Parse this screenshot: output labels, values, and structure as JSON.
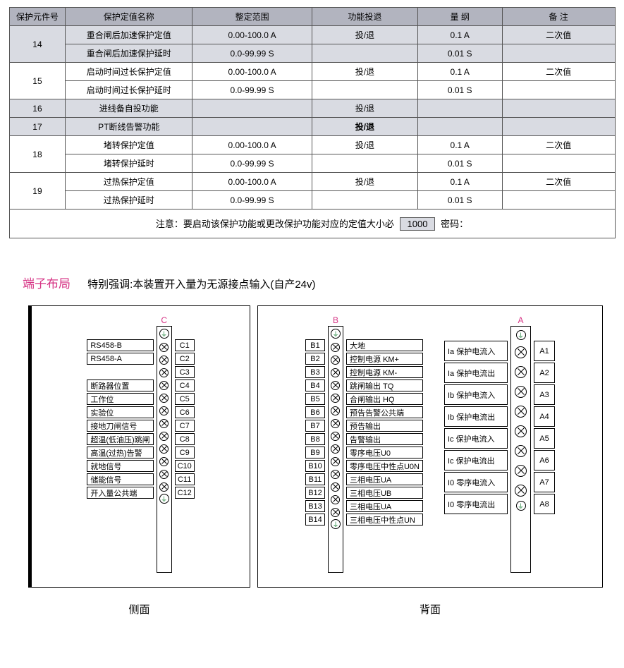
{
  "table": {
    "headers": [
      "保护元件号",
      "保护定值名称",
      "整定范围",
      "功能投退",
      "量 纲",
      "备 注"
    ],
    "groups": [
      {
        "id": "14",
        "shade": true,
        "rows": [
          {
            "name": "重合闸后加速保护定值",
            "range": "0.00-100.0 A",
            "func": "投/退",
            "unit": "0.1 A",
            "note": "二次值"
          },
          {
            "name": "重合闸后加速保护延时",
            "range": "0.0-99.99 S",
            "func": "",
            "unit": "0.01 S",
            "note": ""
          }
        ]
      },
      {
        "id": "15",
        "shade": false,
        "rows": [
          {
            "name": "启动时间过长保护定值",
            "range": "0.00-100.0 A",
            "func": "投/退",
            "unit": "0.1 A",
            "note": "二次值"
          },
          {
            "name": "启动时间过长保护延时",
            "range": "0.0-99.99 S",
            "func": "",
            "unit": "0.01 S",
            "note": ""
          }
        ]
      },
      {
        "id": "16",
        "shade": true,
        "rows": [
          {
            "name": "进线备自投功能",
            "range": "",
            "func": "投/退",
            "unit": "",
            "note": ""
          }
        ]
      },
      {
        "id": "17",
        "shade": true,
        "rows": [
          {
            "name": "PT断线告警功能",
            "range": "",
            "func": "投/退",
            "unit": "",
            "note": "",
            "bold": true
          }
        ]
      },
      {
        "id": "18",
        "shade": false,
        "rows": [
          {
            "name": "堵转保护定值",
            "range": "0.00-100.0 A",
            "func": "投/退",
            "unit": "0.1 A",
            "note": "二次值"
          },
          {
            "name": "堵转保护延时",
            "range": "0.0-99.99 S",
            "func": "",
            "unit": "0.01 S",
            "note": ""
          }
        ]
      },
      {
        "id": "19",
        "shade": false,
        "rows": [
          {
            "name": "过热保护定值",
            "range": "0.00-100.0 A",
            "func": "投/退",
            "unit": "0.1 A",
            "note": "二次值"
          },
          {
            "name": "过热保护延时",
            "range": "0.0-99.99 S",
            "func": "",
            "unit": "0.01 S",
            "note": ""
          }
        ]
      }
    ],
    "note_prefix": "注意：要启动该保护功能或更改保护功能对应的定值大小必",
    "note_code": "1000",
    "note_suffix": "密码："
  },
  "terminal": {
    "heading_pink": "端子布局",
    "heading_rest": "特别强调:本装置开入量为无源接点输入(自产24v)",
    "side_label": "侧面",
    "back_label": "背面",
    "connC": {
      "letter": "C",
      "left": [
        "RS458-B",
        "RS458-A",
        "",
        "断路器位置",
        "工作位",
        "实验位",
        "接地刀闸信号",
        "超温(低油压)跳闸",
        "高温(过热)告警",
        "就地信号",
        "储能信号",
        "开入量公共端"
      ],
      "right": [
        "C1",
        "C2",
        "C3",
        "C4",
        "C5",
        "C6",
        "C7",
        "C8",
        "C9",
        "C10",
        "C11",
        "C12"
      ]
    },
    "connB": {
      "letter": "B",
      "left": [
        "B1",
        "B2",
        "B3",
        "B4",
        "B5",
        "B6",
        "B7",
        "B8",
        "B9",
        "B10",
        "B11",
        "B12",
        "B13",
        "B14"
      ],
      "right": [
        "大地",
        "控制电源 KM+",
        "控制电源 KM-",
        "跳闸输出 TQ",
        "合闸输出 HQ",
        "预告告警公共端",
        "预告输出",
        "告警输出",
        "零序电压U0",
        "零序电压中性点U0N",
        "三相电压UA",
        "三相电压UB",
        "三相电压UA",
        "三相电压中性点UN"
      ]
    },
    "connA": {
      "letter": "A",
      "left": [
        "Ia 保护电流入",
        "Ia 保护电流出",
        "Ib 保护电流入",
        "Ib 保护电流出",
        "Ic 保护电流入",
        "Ic 保护电流出",
        "I0 零序电流入",
        "I0 零序电流出"
      ],
      "right": [
        "A1",
        "A2",
        "A3",
        "A4",
        "A5",
        "A6",
        "A7",
        "A8"
      ]
    }
  },
  "colors": {
    "header_bg": "#b2b4bf",
    "zebra_bg": "#d9dbe2",
    "pink": "#d63384",
    "border": "#555555"
  }
}
